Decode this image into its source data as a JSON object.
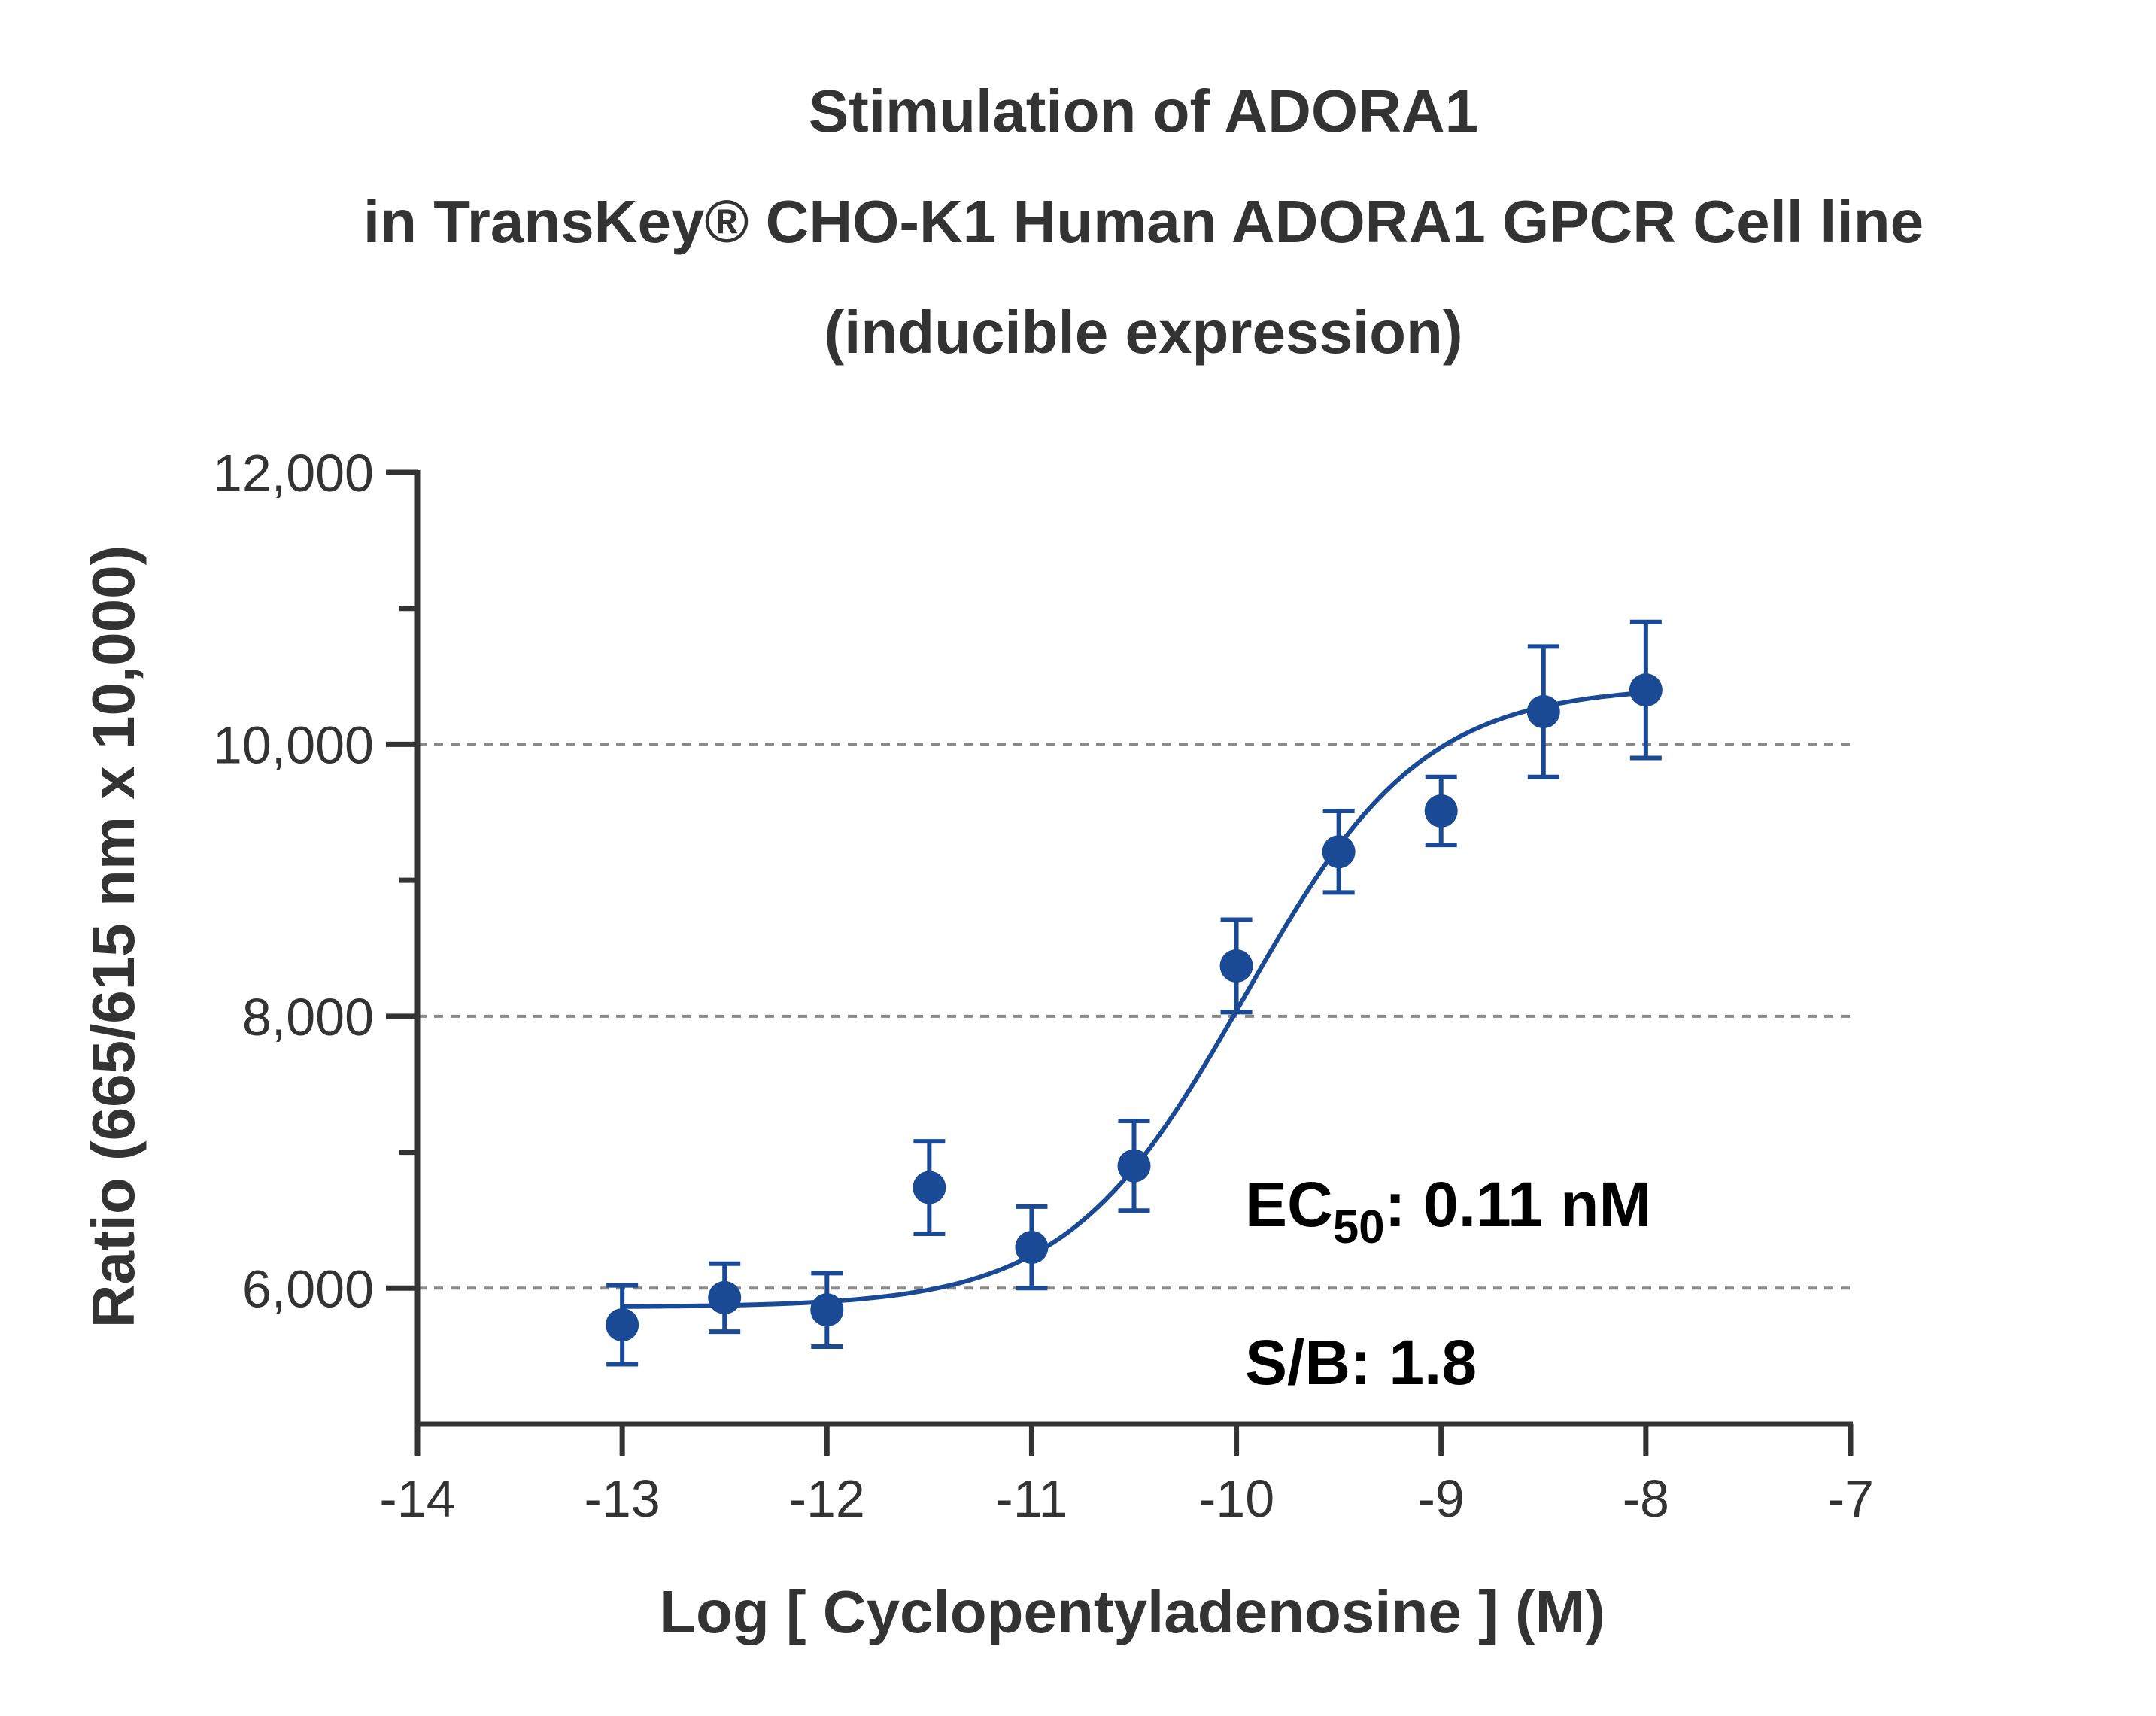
{
  "chart_data": {
    "type": "scatter",
    "title_lines": [
      "Stimulation of  ADORA1",
      "in TransKey® CHO-K1 Human ADORA1 GPCR Cell line",
      "(inducible expression)"
    ],
    "xlabel": "Log [ Cyclopentyladenosine ]  (M)",
    "ylabel": "Ratio (665/615 nm x 10,000)",
    "xlim": [
      -14,
      -7
    ],
    "ylim": [
      5000,
      12000
    ],
    "x_ticks": [
      -14,
      -13,
      -12,
      -11,
      -10,
      -9,
      -8,
      -7
    ],
    "x_tick_labels": [
      "-14",
      "-13",
      "-12",
      "-11",
      "-10",
      "-9",
      "-8",
      "-7"
    ],
    "y_major_ticks": [
      6000,
      8000,
      10000,
      12000
    ],
    "y_tick_labels": [
      "6,000",
      "8,000",
      "10,000",
      "12,000"
    ],
    "y_minor_ticks": [
      7000,
      9000,
      11000
    ],
    "gridlines_y": [
      6000,
      8000,
      10000
    ],
    "grid": "dashed horizontal at major y ticks",
    "series": [
      {
        "x": [
          -13,
          -12.5,
          -12,
          -11.5,
          -11,
          -10.5,
          -10,
          -9.5,
          -9,
          -8.5,
          -8
        ],
        "y": [
          5730,
          5930,
          5840,
          6740,
          6300,
          6900,
          8370,
          9210,
          9510,
          10240,
          10400
        ],
        "error": [
          290,
          250,
          270,
          340,
          300,
          330,
          340,
          300,
          250,
          480,
          500
        ],
        "color": "#1a4a96"
      }
    ],
    "fit": {
      "type": "four-parameter logistic",
      "bottom": 5860,
      "top": 10430,
      "log_ec50": -9.96,
      "hill_slope": 1.0,
      "x_range": [
        -13,
        -8
      ],
      "color": "#1a4a96"
    },
    "annotations": {
      "ec50_prefix": "EC",
      "ec50_subscript": "50",
      "ec50_value": ": 0.11 nM",
      "sb": "S/B: 1.8"
    }
  }
}
